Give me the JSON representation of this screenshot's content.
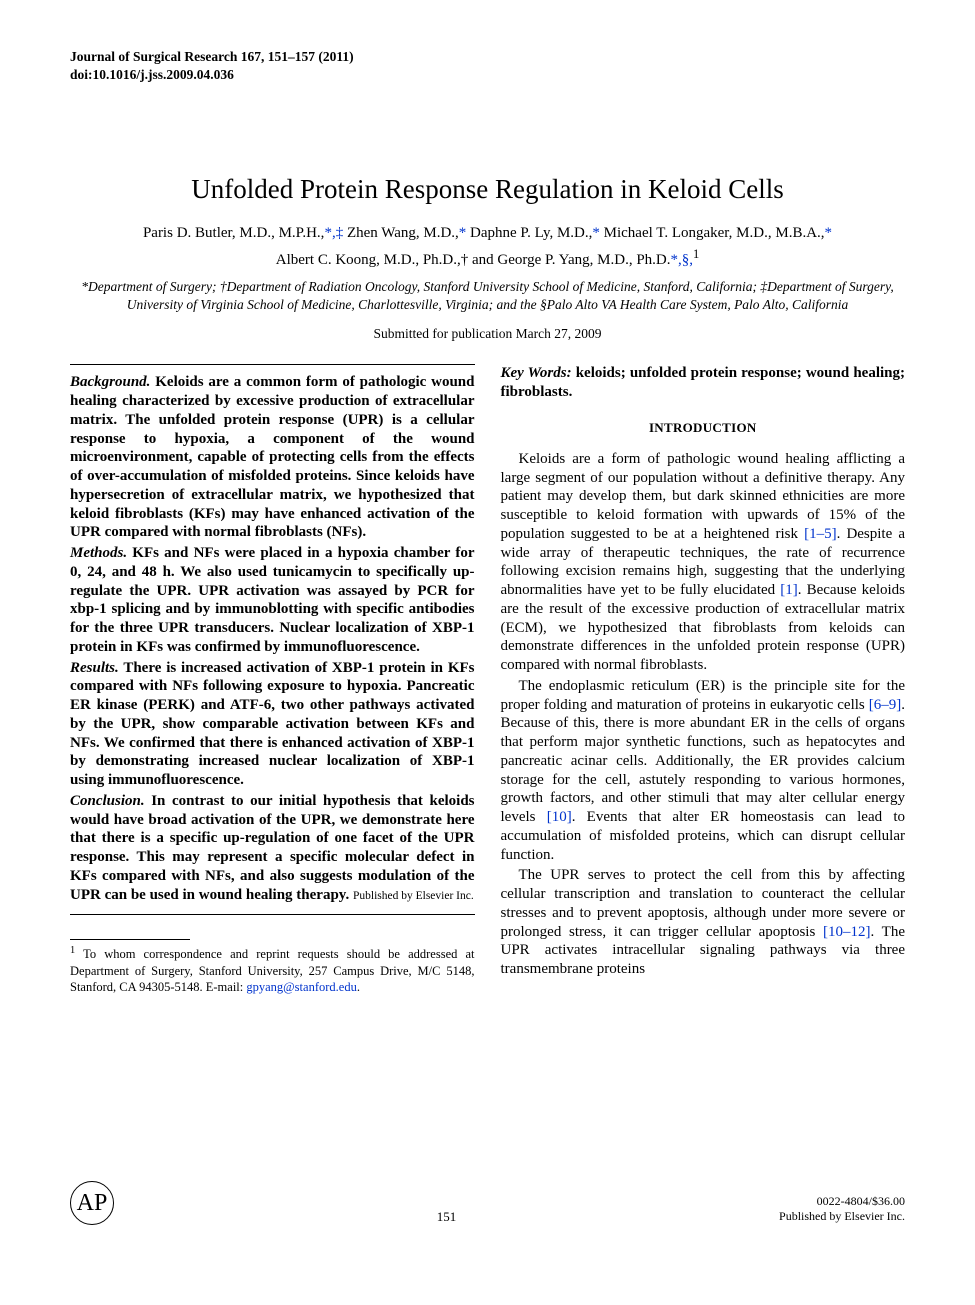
{
  "journal": {
    "line1": "Journal of Surgical Research 167, 151–157 (2011)",
    "doi": "doi:10.1016/j.jss.2009.04.036"
  },
  "title": "Unfolded Protein Response Regulation in Keloid Cells",
  "authors_line1": "Paris D. Butler, M.D., M.P.H.,*,‡ Zhen Wang, M.D.,* Daphne P. Ly, M.D.,* Michael T. Longaker, M.D., M.B.A.,*",
  "authors_line2": "Albert C. Koong, M.D., Ph.D.,† and George P. Yang, M.D., Ph.D.*,§,1",
  "authors_sym_a": "*",
  "authors_sym_b": ",‡",
  "authors_sym_c": "*",
  "authors_sym_d": "*",
  "authors_sym_e": "*",
  "authors_sym_f": "*,§,",
  "affiliations": "*Department of Surgery; †Department of Radiation Oncology, Stanford University School of Medicine, Stanford, California; ‡Department of Surgery, University of Virginia School of Medicine, Charlottesville, Virginia; and the §Palo Alto VA Health Care System, Palo Alto, California",
  "submitted": "Submitted for publication March 27, 2009",
  "abstract": {
    "background_label": "Background.",
    "background": " Keloids are a common form of pathologic wound healing characterized by excessive production of extracellular matrix. The unfolded protein response (UPR) is a cellular response to hypoxia, a component of the wound microenvironment, capable of protecting cells from the effects of over-accumulation of misfolded proteins. Since keloids have hypersecretion of extracellular matrix, we hypothesized that keloid fibroblasts (KFs) may have enhanced activation of the UPR compared with normal fibroblasts (NFs).",
    "methods_label": "Methods.",
    "methods": " KFs and NFs were placed in a hypoxia chamber for 0, 24, and 48 h. We also used tunicamycin to specifically up-regulate the UPR. UPR activation was assayed by PCR for xbp-1 splicing and by immunoblotting with specific antibodies for the three UPR transducers. Nuclear localization of XBP-1 protein in KFs was confirmed by immunofluorescence.",
    "results_label": "Results.",
    "results": " There is increased activation of XBP-1 protein in KFs compared with NFs following exposure to hypoxia. Pancreatic ER kinase (PERK) and ATF-6, two other pathways activated by the UPR, show comparable activation between KFs and NFs. We confirmed that there is enhanced activation of XBP-1 by demonstrating increased nuclear localization of XBP-1 using immunofluorescence.",
    "conclusion_label": "Conclusion.",
    "conclusion": " In contrast to our initial hypothesis that keloids would have broad activation of the UPR, we demonstrate here that there is a specific up-regulation of one facet of the UPR response. This may represent a specific molecular defect in KFs compared with NFs, and also suggests modulation of the UPR can be used in wound healing therapy. ",
    "publisher": "Published by Elsevier Inc."
  },
  "keywords_label": "Key Words:",
  "keywords": " keloids; unfolded protein response; wound healing; fibroblasts.",
  "introduction_heading": "INTRODUCTION",
  "intro_p1_a": "Keloids are a form of pathologic wound healing afflicting a large segment of our population without a definitive therapy. Any patient may develop them, but dark skinned ethnicities are more susceptible to keloid formation with upwards of 15% of the population suggested to be at a heightened risk ",
  "intro_p1_cite1": "[1–5]",
  "intro_p1_b": ". Despite a wide array of therapeutic techniques, the rate of recurrence following excision remains high, suggesting that the underlying abnormalities have yet to be fully elucidated ",
  "intro_p1_cite2": "[1]",
  "intro_p1_c": ". Because keloids are the result of the excessive production of extracellular matrix (ECM), we hypothesized that fibroblasts from keloids can demonstrate differences in the unfolded protein response (UPR) compared with normal fibroblasts.",
  "intro_p2_a": "The endoplasmic reticulum (ER) is the principle site for the proper folding and maturation of proteins in eukaryotic cells ",
  "intro_p2_cite1": "[6–9]",
  "intro_p2_b": ". Because of this, there is more abundant ER in the cells of organs that perform major synthetic functions, such as hepatocytes and pancreatic acinar cells. Additionally, the ER provides calcium storage for the cell, astutely responding to various hormones, growth factors, and other stimuli that may alter cellular energy levels ",
  "intro_p2_cite2": "[10]",
  "intro_p2_c": ". Events that alter ER homeostasis can lead to accumulation of misfolded proteins, which can disrupt cellular function.",
  "intro_p3_a": "The UPR serves to protect the cell from this by affecting cellular transcription and translation to counteract the cellular stresses and to prevent apoptosis, although under more severe or prolonged stress, it can trigger cellular apoptosis ",
  "intro_p3_cite1": "[10–12]",
  "intro_p3_b": ". The UPR activates intracellular signaling pathways via three transmembrane proteins",
  "footnote_marker": "1",
  "footnote_text": " To whom correspondence and reprint requests should be addressed at Department of Surgery, Stanford University, 257 Campus Drive, M/C 5148, Stanford, CA 94305-5148. E-mail: ",
  "footnote_email": "gpyang@stanford.edu",
  "footnote_period": ".",
  "page_number": "151",
  "issn_line1": "0022-4804/$36.00",
  "issn_line2": "Published by Elsevier Inc.",
  "logo_label": "AP",
  "colors": {
    "link": "#0033cc",
    "text": "#000000",
    "background": "#ffffff"
  }
}
